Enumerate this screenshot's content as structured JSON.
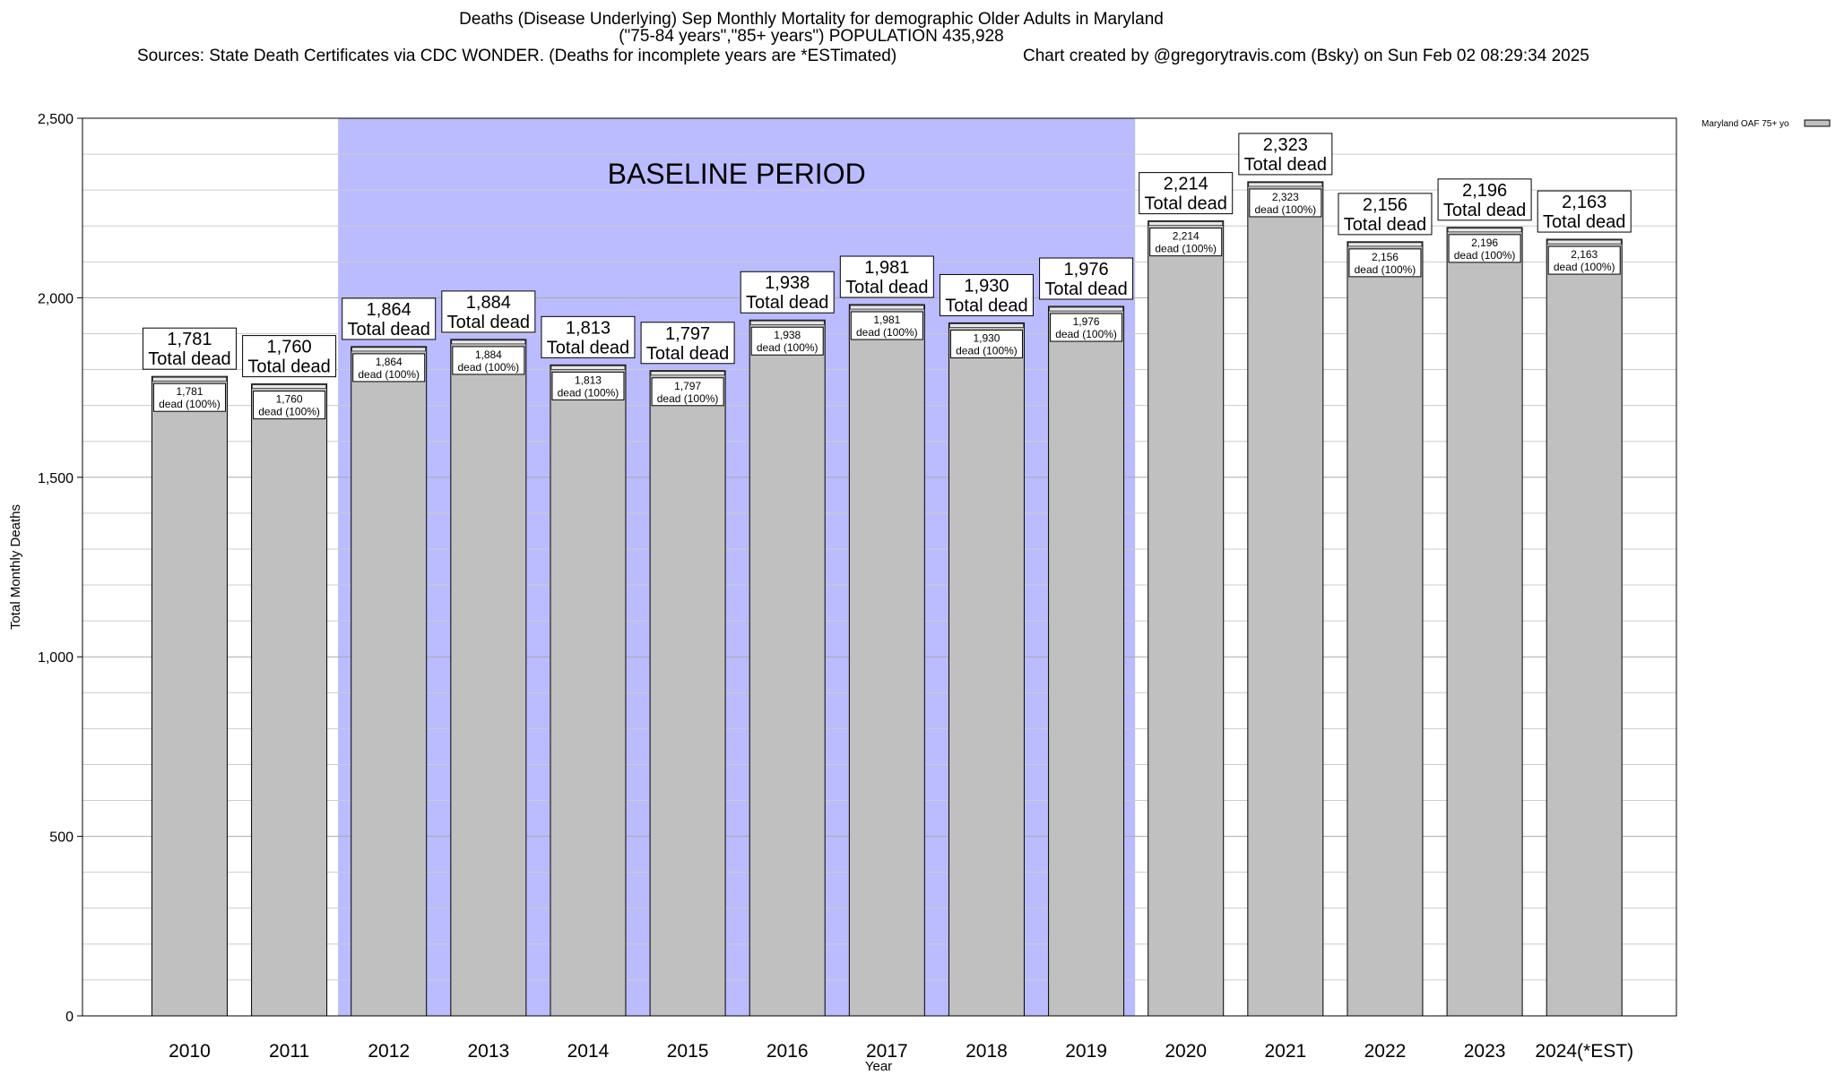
{
  "header": {
    "title_line1": "Deaths (Disease Underlying) Sep Monthly Mortality for demographic Older Adults in Maryland",
    "title_line2": "(\"75-84 years\",\"85+ years\") POPULATION 435,928",
    "sources": "Sources: State Death Certificates via CDC WONDER. (Deaths for incomplete years are *ESTimated)",
    "credit": "Chart created by @gregorytravis.com (Bsky) on Sun Feb 02 08:29:34 2025"
  },
  "chart_data": {
    "type": "bar",
    "categories": [
      "2010",
      "2011",
      "2012",
      "2013",
      "2014",
      "2015",
      "2016",
      "2017",
      "2018",
      "2019",
      "2020",
      "2021",
      "2022",
      "2023",
      "2024(*EST)"
    ],
    "series": [
      {
        "name": "Maryland OAF 75+ yo",
        "values": [
          1781,
          1760,
          1864,
          1884,
          1813,
          1797,
          1938,
          1981,
          1930,
          1976,
          2214,
          2323,
          2156,
          2196,
          2163
        ]
      }
    ],
    "total_labels": [
      "1,781",
      "1,760",
      "1,864",
      "1,884",
      "1,813",
      "1,797",
      "1,938",
      "1,981",
      "1,930",
      "1,976",
      "2,214",
      "2,323",
      "2,156",
      "2,196",
      "2,163"
    ],
    "total_suffix": "Total dead",
    "inner_suffix": "dead (100%)",
    "xlabel": "Year",
    "ylabel": "Total Monthly Deaths",
    "ylim": [
      0,
      2500
    ],
    "yticks": [
      0,
      500,
      1000,
      1500,
      2000,
      2500
    ],
    "ytick_labels": [
      "0",
      "500",
      "1,000",
      "1,500",
      "2,000",
      "2,500"
    ],
    "baseline": {
      "label": "BASELINE PERIOD",
      "from": "2012",
      "to": "2019"
    },
    "grid": true,
    "legend_position": "top-right",
    "colors": {
      "bar": "#c0c0c0",
      "baseline": "#bbbbff",
      "grid": "#cccccc"
    }
  }
}
